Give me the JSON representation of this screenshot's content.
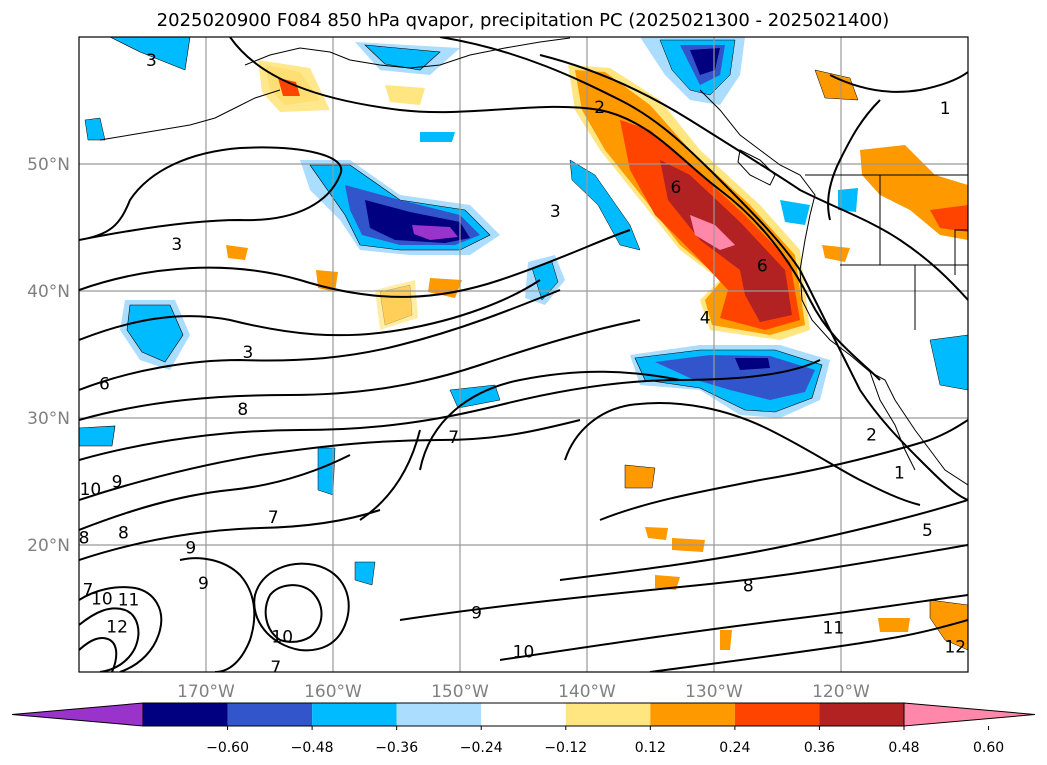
{
  "title": "2025020900 F084 850 hPa qvapor, precipitation PC (2025021300 - 2025021400)",
  "map": {
    "lon_range": [
      -180,
      -110
    ],
    "lat_range": [
      10,
      60
    ],
    "gridlines": true,
    "lon_ticks": [
      {
        "value": -170,
        "label": "170°W"
      },
      {
        "value": -160,
        "label": "160°W"
      },
      {
        "value": -150,
        "label": "150°W"
      },
      {
        "value": -140,
        "label": "140°W"
      },
      {
        "value": -130,
        "label": "130°W"
      },
      {
        "value": -120,
        "label": "120°W"
      }
    ],
    "lat_ticks": [
      {
        "value": 20,
        "label": "20°N"
      },
      {
        "value": 30,
        "label": "30°N"
      },
      {
        "value": 40,
        "label": "40°N"
      },
      {
        "value": 50,
        "label": "50°N"
      }
    ]
  },
  "colorbar": {
    "extend": "both",
    "levels": [
      -0.72,
      -0.6,
      -0.48,
      -0.36,
      -0.24,
      -0.12,
      0.12,
      0.24,
      0.36,
      0.48,
      0.6,
      0.72
    ],
    "colors": [
      "#9933cc",
      "#000080",
      "#3355cc",
      "#00bbff",
      "#aaddff",
      "#ffffff",
      "#ffe680",
      "#ff9900",
      "#ff4400",
      "#b22222",
      "#ff88aa"
    ],
    "tick_labels": [
      "−0.60",
      "−0.48",
      "−0.36",
      "−0.24",
      "−0.12",
      "0.12",
      "0.24",
      "0.36",
      "0.48",
      "0.60"
    ],
    "tick_values": [
      -0.6,
      -0.48,
      -0.36,
      -0.24,
      -0.12,
      0.12,
      0.24,
      0.36,
      0.48,
      0.6
    ]
  },
  "contour_labels": [
    {
      "text": "3",
      "lon": -174.3,
      "lat": 58.2
    },
    {
      "text": "2",
      "lon": -139.0,
      "lat": 54.5
    },
    {
      "text": "1",
      "lon": -111.8,
      "lat": 54.4
    },
    {
      "text": "6",
      "lon": -133.0,
      "lat": 48.2
    },
    {
      "text": "3",
      "lon": -142.5,
      "lat": 46.3
    },
    {
      "text": "3",
      "lon": -172.3,
      "lat": 43.7
    },
    {
      "text": "6",
      "lon": -126.2,
      "lat": 42.0
    },
    {
      "text": "4",
      "lon": -130.7,
      "lat": 37.9
    },
    {
      "text": "3",
      "lon": -166.7,
      "lat": 35.2
    },
    {
      "text": "6",
      "lon": -178.0,
      "lat": 32.7
    },
    {
      "text": "8",
      "lon": -167.1,
      "lat": 30.7
    },
    {
      "text": "7",
      "lon": -150.5,
      "lat": 28.5
    },
    {
      "text": "2",
      "lon": -117.6,
      "lat": 28.7
    },
    {
      "text": "1",
      "lon": -115.4,
      "lat": 25.7
    },
    {
      "text": "9",
      "lon": -177.0,
      "lat": 25.0
    },
    {
      "text": "10",
      "lon": -179.1,
      "lat": 24.4
    },
    {
      "text": "8",
      "lon": -176.5,
      "lat": 21.0
    },
    {
      "text": "7",
      "lon": -164.7,
      "lat": 22.2
    },
    {
      "text": "5",
      "lon": -113.2,
      "lat": 21.2
    },
    {
      "text": "8",
      "lon": -179.6,
      "lat": 20.6
    },
    {
      "text": "9",
      "lon": -171.2,
      "lat": 19.8
    },
    {
      "text": "9",
      "lon": -170.2,
      "lat": 17.0
    },
    {
      "text": "7",
      "lon": -179.3,
      "lat": 16.5
    },
    {
      "text": "10",
      "lon": -178.2,
      "lat": 15.8
    },
    {
      "text": "11",
      "lon": -176.1,
      "lat": 15.7
    },
    {
      "text": "8",
      "lon": -127.3,
      "lat": 16.8
    },
    {
      "text": "9",
      "lon": -148.7,
      "lat": 14.7
    },
    {
      "text": "12",
      "lon": -177.0,
      "lat": 13.6
    },
    {
      "text": "11",
      "lon": -120.6,
      "lat": 13.5
    },
    {
      "text": "10",
      "lon": -164.0,
      "lat": 12.8
    },
    {
      "text": "12",
      "lon": -111.0,
      "lat": 12.0
    },
    {
      "text": "10",
      "lon": -145.0,
      "lat": 11.6
    },
    {
      "text": "7",
      "lon": -164.5,
      "lat": 10.4
    }
  ]
}
